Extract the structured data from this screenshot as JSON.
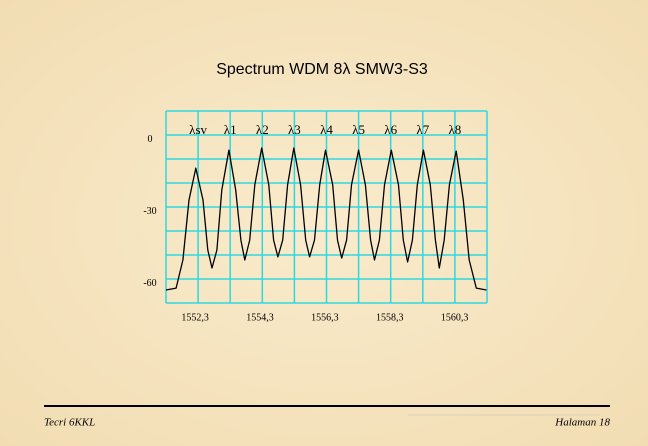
{
  "chart_data": {
    "type": "line",
    "title": "Spectrum WDM 8λ SMW3-S3",
    "x": [
      1551.4,
      1551.71,
      1551.92,
      1552.11,
      1552.32,
      1552.54,
      1552.69,
      1552.82,
      1552.97,
      1553.12,
      1553.34,
      1553.55,
      1553.71,
      1553.83,
      1553.98,
      1554.14,
      1554.35,
      1554.57,
      1554.72,
      1554.85,
      1555.0,
      1555.15,
      1555.34,
      1555.55,
      1555.71,
      1555.83,
      1555.98,
      1556.14,
      1556.32,
      1556.54,
      1556.69,
      1556.82,
      1556.97,
      1557.12,
      1557.34,
      1557.55,
      1557.71,
      1557.83,
      1557.98,
      1558.14,
      1558.35,
      1558.57,
      1558.72,
      1558.85,
      1559.0,
      1559.15,
      1559.34,
      1559.55,
      1559.71,
      1559.83,
      1559.98,
      1560.14,
      1560.35,
      1560.57,
      1560.75,
      1560.97,
      1561.28
    ],
    "series": [
      {
        "color": "#000000",
        "values": [
          -62.6,
          -61.8,
          -50.1,
          -25.1,
          -11.8,
          -25.1,
          -45.9,
          -53.4,
          -45.9,
          -20.9,
          -4.3,
          -20.9,
          -41.8,
          -50.1,
          -41.8,
          -18.8,
          -3.4,
          -18.8,
          -41.8,
          -48.8,
          -41.8,
          -18.8,
          -3.4,
          -18.8,
          -41.8,
          -48.8,
          -41.8,
          -18.8,
          -4.3,
          -18.8,
          -41.8,
          -49.3,
          -41.8,
          -18.8,
          -4.3,
          -18.8,
          -41.8,
          -50.1,
          -41.8,
          -18.8,
          -4.3,
          -18.8,
          -41.8,
          -50.9,
          -41.8,
          -18.8,
          -4.3,
          -18.8,
          -41.8,
          -53.4,
          -41.8,
          -18.8,
          -4.7,
          -25.1,
          -50.1,
          -61.8,
          -62.6
        ]
      }
    ],
    "xlim": [
      1551.4,
      1561.3
    ],
    "xticks": [
      {
        "value": 1552.3,
        "label": "1552,3"
      },
      {
        "value": 1554.3,
        "label": "1554,3"
      },
      {
        "value": 1556.3,
        "label": "1556,3"
      },
      {
        "value": 1558.3,
        "label": "1558,3"
      },
      {
        "value": 1560.3,
        "label": "1560,3"
      }
    ],
    "ylim": [
      -68,
      12
    ],
    "yticks": [
      0,
      -30,
      -60
    ],
    "peak_labels": [
      "λsv",
      "λ1",
      "λ2",
      "λ3",
      "λ4",
      "λ5",
      "λ6",
      "λ7",
      "λ8"
    ]
  },
  "footer": {
    "left": "Tecri 6KKL",
    "right": "Halaman 18"
  }
}
